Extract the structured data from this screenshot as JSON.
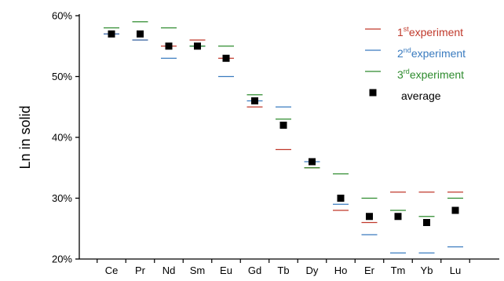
{
  "chart_data": {
    "type": "scatter",
    "title": "",
    "xlabel": "",
    "ylabel": "Ln in solid",
    "ylim": [
      20,
      60
    ],
    "y_ticks": [
      "20%",
      "30%",
      "40%",
      "50%",
      "60%"
    ],
    "y_tick_values": [
      20,
      30,
      40,
      50,
      60
    ],
    "categories": [
      "Ce",
      "Pr",
      "Nd",
      "Sm",
      "Eu",
      "Gd",
      "Tb",
      "Dy",
      "Ho",
      "Er",
      "Tm",
      "Yb",
      "Lu"
    ],
    "series": [
      {
        "name": "1st experiment",
        "marker": "dash",
        "color": "#c0392b",
        "values": [
          57,
          56,
          55,
          56,
          53,
          45,
          38,
          35,
          28,
          26,
          31,
          31,
          31
        ]
      },
      {
        "name": "2nd experiment",
        "marker": "dash",
        "color": "#3a7bbf",
        "values": [
          57,
          56,
          53,
          55,
          50,
          46,
          45,
          36,
          29,
          24,
          21,
          21,
          22
        ]
      },
      {
        "name": "3rd experiment",
        "marker": "dash",
        "color": "#2e8b2e",
        "values": [
          58,
          59,
          58,
          55,
          55,
          47,
          43,
          35,
          34,
          30,
          28,
          27,
          30
        ]
      },
      {
        "name": "average",
        "marker": "square",
        "color": "#000000",
        "values": [
          57,
          57,
          55,
          55,
          53,
          46,
          42,
          36,
          30,
          27,
          27,
          26,
          28
        ]
      }
    ],
    "legend": {
      "position": "top-right",
      "entries": [
        {
          "num": "1",
          "sup": "st",
          "text": "experiment",
          "color": "#c0392b"
        },
        {
          "num": "2",
          "sup": "nd",
          "text": "experiment",
          "color": "#3a7bbf"
        },
        {
          "num": "3",
          "sup": "rd",
          "text": "experiment",
          "color": "#2e8b2e"
        },
        {
          "num": "",
          "sup": "",
          "text": "average",
          "color": "#000000"
        }
      ]
    },
    "grid": false
  }
}
